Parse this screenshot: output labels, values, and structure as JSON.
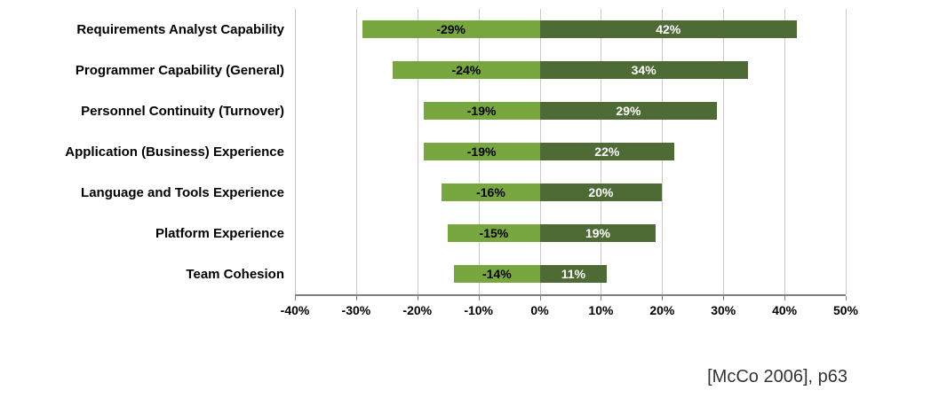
{
  "chart_data": {
    "type": "bar",
    "orientation": "horizontal",
    "title": "",
    "xlabel": "",
    "ylabel": "",
    "xlim": [
      -40,
      50
    ],
    "grid": true,
    "legend": false,
    "categories": [
      "Requirements Analyst Capability",
      "Programmer Capability (General)",
      "Personnel Continuity (Turnover)",
      "Application (Business) Experience",
      "Language and Tools Experience",
      "Platform Experience",
      "Team Cohesion"
    ],
    "series": [
      {
        "name": "negative-impact",
        "values": [
          -29,
          -24,
          -19,
          -19,
          -16,
          -15,
          -14
        ],
        "labels": [
          "-29%",
          "-24%",
          "-19%",
          "-19%",
          "-16%",
          "-15%",
          "-14%"
        ],
        "color": "#79A73F",
        "label_color": "#000000"
      },
      {
        "name": "positive-impact",
        "values": [
          42,
          34,
          29,
          22,
          20,
          19,
          11
        ],
        "labels": [
          "42%",
          "34%",
          "29%",
          "22%",
          "20%",
          "19%",
          "11%"
        ],
        "color": "#4E6B36",
        "label_color": "#ffffff"
      }
    ],
    "x_tick_values": [
      -40,
      -30,
      -20,
      -10,
      0,
      10,
      20,
      30,
      40,
      50
    ],
    "x_ticks": [
      "-40%",
      "-30%",
      "-20%",
      "-10%",
      "0%",
      "10%",
      "20%",
      "30%",
      "40%",
      "50%"
    ],
    "gridline_color": "#c8c8c8",
    "axis_color": "#808080"
  },
  "citation": "[McCo 2006], p63"
}
